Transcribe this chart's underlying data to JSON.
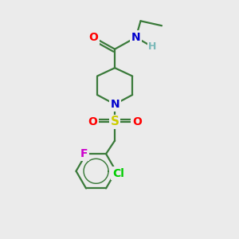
{
  "bg_color": "#ebebeb",
  "bond_color": "#3a7a3a",
  "bond_width": 1.6,
  "atom_colors": {
    "O": "#ff0000",
    "N": "#0000cc",
    "S": "#cccc00",
    "F": "#cc00cc",
    "Cl": "#00cc00",
    "H": "#7ab8b8",
    "C": "#3a7a3a"
  },
  "font_size": 10
}
